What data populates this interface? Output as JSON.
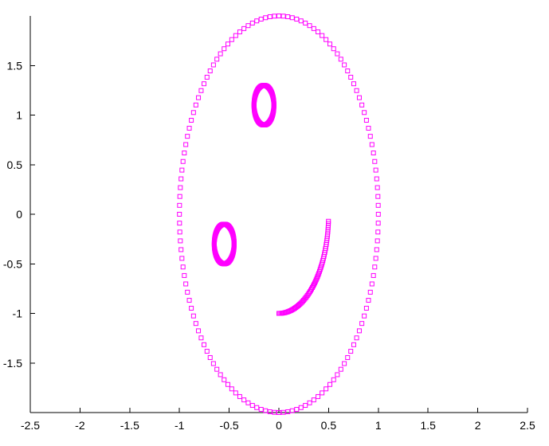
{
  "chart_data": {
    "type": "scatter",
    "title": "",
    "xlabel": "",
    "ylabel": "",
    "xlim": [
      -2.5,
      2.5
    ],
    "ylim": [
      -2,
      2
    ],
    "grid": false,
    "marker": "open-square",
    "marker_color": "#ff00ff",
    "x_ticks": [
      -2.5,
      -2,
      -1.5,
      -1,
      -0.5,
      0,
      0.5,
      1,
      1.5,
      2,
      2.5
    ],
    "x_tick_labels": [
      "-2.5",
      "-2",
      "-1.5",
      "-1",
      "-0.5",
      "0",
      "0.5",
      "1",
      "1.5",
      "2",
      "2.5"
    ],
    "y_ticks": [
      -1.5,
      -1,
      -0.5,
      0,
      0.5,
      1,
      1.5
    ],
    "y_tick_labels": [
      "-1.5",
      "-1",
      "-0.5",
      "0",
      "0.5",
      "1",
      "1.5"
    ],
    "series": [
      {
        "shape": "ellipse-outline",
        "center": [
          0,
          0
        ],
        "radius_x": 1.0,
        "radius_y": 2.0,
        "point_count": 140
      },
      {
        "shape": "ellipse-outline",
        "center": [
          -0.15,
          1.1
        ],
        "radius_x": 0.1,
        "radius_y": 0.2,
        "point_count": 140
      },
      {
        "shape": "ellipse-outline",
        "center": [
          -0.55,
          -0.3
        ],
        "radius_x": 0.1,
        "radius_y": 0.2,
        "point_count": 140
      },
      {
        "shape": "arc",
        "t_range": [
          0,
          1.5
        ],
        "x_function": "0.5*sin(t)",
        "y_function": "-cos(t)",
        "point_count": 70
      }
    ]
  }
}
